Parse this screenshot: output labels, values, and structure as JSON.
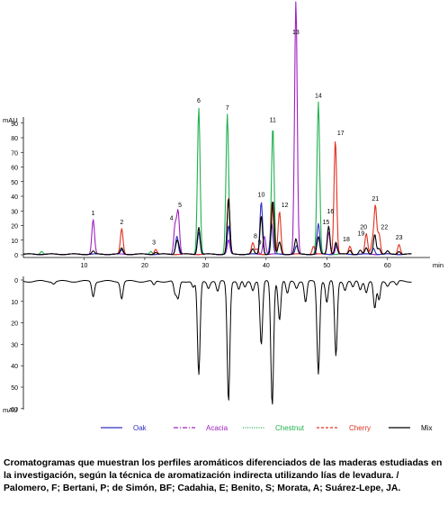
{
  "chart_data": {
    "type": "line",
    "top_panel": {
      "ylabel": "mAU",
      "xlabel": "min",
      "xlim": [
        0,
        67
      ],
      "ylim": [
        -2,
        250
      ],
      "x_ticks": [
        "10",
        "20",
        "30",
        "40",
        "50",
        "60"
      ],
      "y_ticks": [
        "0",
        "10",
        "20",
        "30",
        "40",
        "50",
        "60",
        "70",
        "80",
        "90"
      ],
      "series": [
        {
          "name": "Oak",
          "color": "#3030c0",
          "peaks": [
            [
              16.2,
              4
            ],
            [
              25.3,
              18
            ],
            [
              28.9,
              22
            ],
            [
              33.8,
              28
            ],
            [
              39.2,
              52
            ],
            [
              40.9,
              30
            ],
            [
              45.0,
              8
            ],
            [
              48.6,
              30
            ],
            [
              51.5,
              10
            ],
            [
              57.7,
              6
            ]
          ]
        },
        {
          "name": "Acacia",
          "color": "#a020c0",
          "peaks": [
            [
              11.5,
              34
            ],
            [
              25.0,
              29
            ],
            [
              25.5,
              42
            ],
            [
              33.8,
              14
            ],
            [
              39.7,
              18
            ],
            [
              44.9,
              250
            ],
            [
              50.3,
              22
            ],
            [
              51.6,
              8
            ]
          ]
        },
        {
          "name": "Chestnut",
          "color": "#20b050",
          "peaks": [
            [
              3.0,
              3
            ],
            [
              28.9,
              145
            ],
            [
              33.6,
              138
            ],
            [
              41.1,
              126
            ],
            [
              48.6,
              150
            ],
            [
              16.2,
              6
            ],
            [
              21.0,
              3
            ]
          ]
        },
        {
          "name": "Cherry",
          "color": "#e03020",
          "peaks": [
            [
              16.2,
              25
            ],
            [
              21.8,
              5
            ],
            [
              33.8,
              56
            ],
            [
              37.8,
              11
            ],
            [
              38.5,
              5
            ],
            [
              41.0,
              52
            ],
            [
              42.2,
              42
            ],
            [
              47.8,
              8
            ],
            [
              51.4,
              113
            ],
            [
              53.8,
              8
            ],
            [
              56.5,
              20
            ],
            [
              57.5,
              12
            ],
            [
              58.0,
              48
            ],
            [
              58.6,
              20
            ],
            [
              61.9,
              10
            ]
          ]
        },
        {
          "name": "Mix",
          "color": "#000000",
          "peaks": [
            [
              11.5,
              3
            ],
            [
              16.2,
              6
            ],
            [
              21.8,
              2
            ],
            [
              25.2,
              8
            ],
            [
              25.5,
              10
            ],
            [
              28.9,
              27
            ],
            [
              33.8,
              55
            ],
            [
              37.8,
              5
            ],
            [
              39.2,
              38
            ],
            [
              41.1,
              53
            ],
            [
              42.2,
              12
            ],
            [
              44.9,
              15
            ],
            [
              48.6,
              17
            ],
            [
              50.3,
              28
            ],
            [
              51.5,
              12
            ],
            [
              53.8,
              4
            ],
            [
              55.5,
              4
            ],
            [
              56.5,
              6
            ],
            [
              57.9,
              20
            ],
            [
              58.6,
              6
            ],
            [
              60.0,
              3
            ],
            [
              61.9,
              3
            ]
          ]
        }
      ],
      "peak_labels": [
        {
          "text": "1",
          "x": 11.5,
          "y": 34
        },
        {
          "text": "2",
          "x": 16.2,
          "y": 25
        },
        {
          "text": "3",
          "x": 21.8,
          "y": 5
        },
        {
          "text": "4",
          "x": 25.0,
          "y": 29
        },
        {
          "text": "5",
          "x": 25.5,
          "y": 42
        },
        {
          "text": "6",
          "x": 28.9,
          "y": 145
        },
        {
          "text": "7",
          "x": 33.6,
          "y": 138
        },
        {
          "text": "8",
          "x": 37.8,
          "y": 11
        },
        {
          "text": "9",
          "x": 38.5,
          "y": 5
        },
        {
          "text": "10",
          "x": 39.2,
          "y": 52
        },
        {
          "text": "11",
          "x": 41.1,
          "y": 126
        },
        {
          "text": "12",
          "x": 42.2,
          "y": 42
        },
        {
          "text": "13",
          "x": 44.9,
          "y": 195
        },
        {
          "text": "14",
          "x": 48.6,
          "y": 150
        },
        {
          "text": "15",
          "x": 50.3,
          "y": 22
        },
        {
          "text": "16",
          "x": 50.3,
          "y": 30
        },
        {
          "text": "17",
          "x": 51.4,
          "y": 113
        },
        {
          "text": "18",
          "x": 53.8,
          "y": 8
        },
        {
          "text": "19",
          "x": 55.5,
          "y": 14
        },
        {
          "text": "20",
          "x": 56.5,
          "y": 20
        },
        {
          "text": "21",
          "x": 58.0,
          "y": 48
        },
        {
          "text": "22",
          "x": 58.6,
          "y": 20
        },
        {
          "text": "23",
          "x": 61.9,
          "y": 10
        }
      ]
    },
    "bottom_panel": {
      "ylabel": "mAU",
      "inverted": true,
      "xlim": [
        0,
        67
      ],
      "ylim": [
        0,
        60
      ],
      "y_ticks": [
        "0",
        "10",
        "20",
        "30",
        "40",
        "50",
        "60"
      ],
      "series": [
        {
          "name": "Mix",
          "color": "#000000",
          "peaks": [
            [
              5.0,
              1
            ],
            [
              11.5,
              7
            ],
            [
              16.2,
              8
            ],
            [
              21.5,
              2
            ],
            [
              25.0,
              6
            ],
            [
              25.5,
              8
            ],
            [
              28.0,
              3
            ],
            [
              28.9,
              44
            ],
            [
              30.5,
              3
            ],
            [
              32.0,
              5
            ],
            [
              33.8,
              56
            ],
            [
              35.5,
              4
            ],
            [
              36.5,
              3
            ],
            [
              37.8,
              4
            ],
            [
              39.2,
              30
            ],
            [
              41.0,
              58
            ],
            [
              42.2,
              18
            ],
            [
              43.5,
              6
            ],
            [
              45.0,
              3
            ],
            [
              46.5,
              10
            ],
            [
              48.6,
              43
            ],
            [
              50.0,
              10
            ],
            [
              51.5,
              35
            ],
            [
              53.0,
              4
            ],
            [
              54.3,
              3
            ],
            [
              55.5,
              4
            ],
            [
              56.5,
              5
            ],
            [
              57.9,
              13
            ],
            [
              58.6,
              9
            ],
            [
              60.0,
              2
            ],
            [
              61.5,
              2
            ]
          ]
        }
      ]
    },
    "legend": {
      "placement": "bottom",
      "entries": [
        {
          "name": "Oak",
          "color": "#3030c0",
          "dash": "solid"
        },
        {
          "name": "Acacia",
          "color": "#a020c0",
          "dash": "dashdot"
        },
        {
          "name": "Chestnut",
          "color": "#20b050",
          "dash": "dotted"
        },
        {
          "name": "Cherry",
          "color": "#e03020",
          "dash": "dashed"
        },
        {
          "name": "Mix",
          "color": "#000000",
          "dash": "solid"
        }
      ]
    }
  },
  "caption": "Cromatogramas que muestran los perfiles aromáticos diferenciados de las maderas estudiadas en la investigación, según la técnica de aromatización indirecta utilizando lías de levadura. / Palomero, F; Bertani, P; de Simón, BF; Cadahia, E; Benito, S; Morata, A; Suárez-Lepe, JA."
}
